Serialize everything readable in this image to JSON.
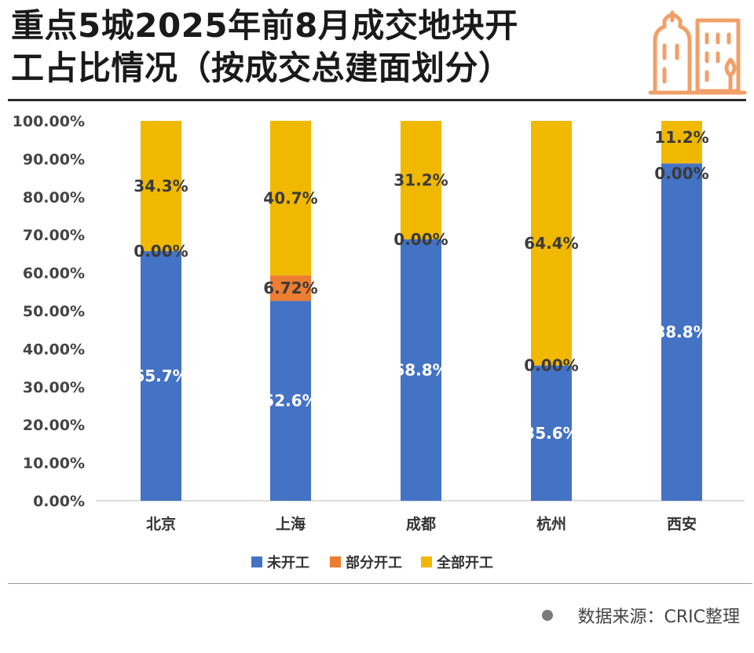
{
  "header": {
    "title_line1": "重点5城2025年前8月成交地块开",
    "title_line2": "工占比情况（按成交总建面划分）",
    "icon": "buildings-icon"
  },
  "colors": {
    "未开工": "#4472c4",
    "部分开工": "#ed7d31",
    "全部开工": "#f1b800",
    "accent_icon": "#f0a068"
  },
  "footer": {
    "source_text": "数据来源：CRIC整理"
  },
  "chart_data": {
    "type": "bar",
    "stacked": true,
    "categories": [
      "北京",
      "上海",
      "成都",
      "杭州",
      "西安"
    ],
    "series": [
      {
        "name": "未开工",
        "values": [
          65.7,
          52.6,
          68.8,
          35.6,
          88.8
        ],
        "labels": [
          "65.7%",
          "52.6%",
          "68.8%",
          "35.6%",
          "88.8%"
        ]
      },
      {
        "name": "部分开工",
        "values": [
          0.0,
          6.72,
          0.0,
          0.0,
          0.0
        ],
        "labels": [
          "0.00%",
          "6.72%",
          "0.00%",
          "0.00%",
          "0.00%"
        ]
      },
      {
        "name": "全部开工",
        "values": [
          34.3,
          40.7,
          31.2,
          64.4,
          11.2
        ],
        "labels": [
          "34.3%",
          "40.7%",
          "31.2%",
          "64.4%",
          "11.2%"
        ]
      }
    ],
    "yticks": [
      "0.00%",
      "10.00%",
      "20.00%",
      "30.00%",
      "40.00%",
      "50.00%",
      "60.00%",
      "70.00%",
      "80.00%",
      "90.00%",
      "100.00%"
    ],
    "ylim": [
      0,
      100
    ],
    "grid": false,
    "legend_position": "bottom"
  }
}
